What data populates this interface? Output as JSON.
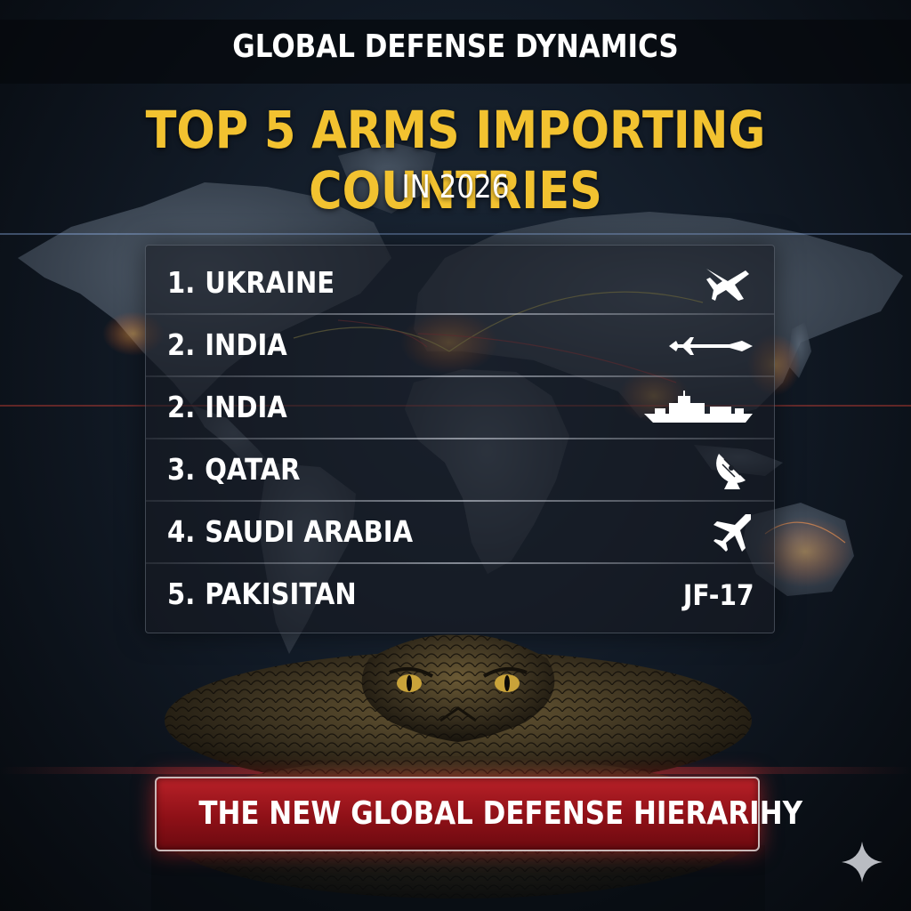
{
  "header": {
    "title": "GLOBAL DEFENSE DYNAMICS"
  },
  "headline": {
    "title": "TOP 5 ARMS IMPORTING COUNTRIES",
    "subtitle": "IN 2026"
  },
  "ranking": {
    "rows": [
      {
        "rank": "1.",
        "country": "UKRAINE",
        "icon": "fighter-jet-icon"
      },
      {
        "rank": "2.",
        "country": "INDIA",
        "icon": "missile-icon"
      },
      {
        "rank": "2.",
        "country": "INDIA",
        "icon": "warship-icon"
      },
      {
        "rank": "3.",
        "country": "QATAR",
        "icon": "radar-dish-icon"
      },
      {
        "rank": "4.",
        "country": "SAUDI ARABIA",
        "icon": "aircraft-icon"
      },
      {
        "rank": "5.",
        "country": "PAKISITAN",
        "label": "JF-17"
      }
    ]
  },
  "banner": {
    "text": "THE NEW GLOBAL DEFENSE HIERARIHY"
  },
  "colors": {
    "title_gold": "#f2c230",
    "banner_red": "#8e1017",
    "map_glow": "#ff7a2a"
  }
}
